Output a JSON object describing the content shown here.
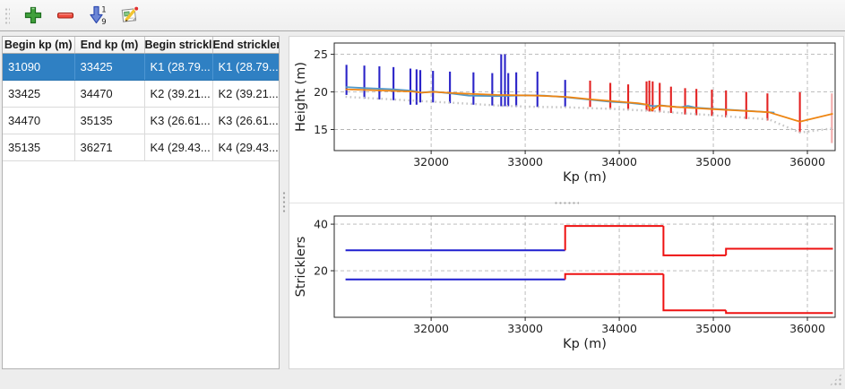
{
  "toolbar": {
    "buttons": [
      {
        "name": "add",
        "icon": "plus-icon"
      },
      {
        "name": "remove",
        "icon": "minus-icon"
      },
      {
        "name": "sort",
        "icon": "sort-numeric-icon",
        "digits": [
          "1",
          "9"
        ]
      },
      {
        "name": "edit",
        "icon": "edit-icon"
      }
    ]
  },
  "table": {
    "columns": [
      "Begin kp (m)",
      "End kp (m)",
      "Begin strickler",
      "End strickler"
    ],
    "rows": [
      [
        "31090",
        "33425",
        "K1 (28.79...",
        "K1 (28.79..."
      ],
      [
        "33425",
        "34470",
        "K2 (39.21...",
        "K2 (39.21..."
      ],
      [
        "34470",
        "35135",
        "K3 (26.61...",
        "K3 (26.61..."
      ],
      [
        "35135",
        "36271",
        "K4 (29.43...",
        "K4 (29.43..."
      ]
    ],
    "selected_row": 0,
    "selection_color": "#2f80c3"
  },
  "chart_data": [
    {
      "type": "line",
      "xlabel": "Kp (m)",
      "ylabel": "Height (m)",
      "xlim": [
        30970,
        36295
      ],
      "ylim": [
        12.2,
        26.5
      ],
      "xticks": [
        32000,
        33000,
        34000,
        35000,
        36000
      ],
      "yticks": [
        15,
        20,
        25
      ],
      "grid": true,
      "legend": "none",
      "cross_sections": [
        {
          "name": "selected-zone-sections",
          "color": "#2a23c8",
          "lines": [
            [
              31100,
              19.6,
              23.6
            ],
            [
              31290,
              19.1,
              23.5
            ],
            [
              31450,
              19.0,
              23.4
            ],
            [
              31600,
              18.9,
              23.3
            ],
            [
              31780,
              18.3,
              23.1
            ],
            [
              31845,
              18.3,
              23.0
            ],
            [
              31885,
              18.6,
              22.9
            ],
            [
              32020,
              18.6,
              22.8
            ],
            [
              32200,
              18.5,
              22.7
            ],
            [
              32450,
              18.3,
              22.6
            ],
            [
              32650,
              18.2,
              22.5
            ],
            [
              32745,
              18.1,
              25.0
            ],
            [
              32785,
              18.1,
              25.0
            ],
            [
              32820,
              18.1,
              22.5
            ],
            [
              32905,
              18.0,
              22.6
            ],
            [
              33130,
              18.0,
              22.7
            ],
            [
              33425,
              18.0,
              21.6
            ]
          ]
        },
        {
          "name": "other-zone-sections",
          "color": "#e32222",
          "lines": [
            [
              33690,
              18.0,
              21.5
            ],
            [
              33905,
              17.7,
              21.2
            ],
            [
              34095,
              17.6,
              21.0
            ],
            [
              34290,
              17.5,
              21.4
            ],
            [
              34320,
              17.4,
              21.5
            ],
            [
              34355,
              17.4,
              21.4
            ],
            [
              34430,
              17.3,
              21.2
            ],
            [
              34550,
              17.2,
              20.7
            ],
            [
              34700,
              17.0,
              20.5
            ],
            [
              34820,
              16.9,
              20.4
            ],
            [
              34985,
              16.8,
              20.3
            ],
            [
              35135,
              16.6,
              20.2
            ],
            [
              35350,
              16.4,
              20.0
            ],
            [
              35575,
              16.2,
              19.8
            ],
            [
              35920,
              14.6,
              19.95
            ]
          ]
        },
        {
          "name": "end-section-pale",
          "color": "#f2aaaa",
          "lines": [
            [
              36260,
              13.2,
              19.8
            ]
          ]
        }
      ],
      "series": [
        {
          "name": "bed-profile-dotted",
          "color": "#c6c6c6",
          "dash": "dotted",
          "width": 2.4,
          "points": [
            [
              31090,
              19.35
            ],
            [
              31450,
              19.1
            ],
            [
              31800,
              18.85
            ],
            [
              32020,
              18.7
            ],
            [
              32450,
              18.4
            ],
            [
              32760,
              18.15
            ],
            [
              33130,
              18.0
            ],
            [
              33440,
              17.95
            ],
            [
              33900,
              17.75
            ],
            [
              34300,
              17.5
            ],
            [
              34700,
              17.15
            ],
            [
              35000,
              16.9
            ],
            [
              35360,
              16.55
            ],
            [
              35590,
              16.35
            ],
            [
              35920,
              14.6
            ],
            [
              36271,
              15.15
            ]
          ]
        },
        {
          "name": "water-line-blue",
          "color": "#4f97c7",
          "dash": "solid",
          "width": 1.8,
          "points": [
            [
              31090,
              20.65
            ],
            [
              31300,
              20.5
            ],
            [
              31600,
              20.35
            ],
            [
              31800,
              20.15
            ],
            [
              31900,
              19.9
            ],
            [
              32020,
              20.05
            ],
            [
              32210,
              19.8
            ],
            [
              32400,
              19.5
            ],
            [
              32700,
              19.45
            ],
            [
              33000,
              19.55
            ],
            [
              33200,
              19.5
            ],
            [
              33425,
              19.3
            ],
            [
              33700,
              18.95
            ],
            [
              33900,
              18.7
            ],
            [
              34100,
              18.55
            ],
            [
              34290,
              18.3
            ],
            [
              34360,
              18.1
            ],
            [
              34450,
              18.2
            ],
            [
              34560,
              18.05
            ],
            [
              34650,
              17.95
            ],
            [
              34730,
              18.15
            ],
            [
              34820,
              17.9
            ],
            [
              35000,
              17.75
            ],
            [
              35200,
              17.6
            ],
            [
              35400,
              17.45
            ],
            [
              35650,
              17.25
            ]
          ]
        },
        {
          "name": "water-line-orange",
          "color": "#ee8512",
          "dash": "solid",
          "width": 1.8,
          "points": [
            [
              31090,
              20.35
            ],
            [
              31450,
              20.2
            ],
            [
              31800,
              20.05
            ],
            [
              31900,
              19.9
            ],
            [
              32020,
              20.0
            ],
            [
              32300,
              19.8
            ],
            [
              32700,
              19.6
            ],
            [
              33130,
              19.5
            ],
            [
              33425,
              19.35
            ],
            [
              33700,
              19.0
            ],
            [
              33950,
              18.75
            ],
            [
              34200,
              18.5
            ],
            [
              34300,
              18.3
            ],
            [
              34340,
              17.55
            ],
            [
              34420,
              18.2
            ],
            [
              34600,
              18.0
            ],
            [
              34800,
              17.85
            ],
            [
              35000,
              17.7
            ],
            [
              35300,
              17.5
            ],
            [
              35590,
              17.3
            ],
            [
              35920,
              16.05
            ],
            [
              36271,
              17.1
            ]
          ]
        }
      ]
    },
    {
      "type": "step",
      "xlabel": "Kp (m)",
      "ylabel": "Stricklers",
      "xlim": [
        30970,
        36295
      ],
      "ylim": [
        0,
        43.5
      ],
      "xticks": [
        32000,
        33000,
        34000,
        35000,
        36000
      ],
      "yticks": [
        20,
        40
      ],
      "grid": true,
      "step_series": [
        {
          "name": "minor-bed-strickler",
          "segments": [
            {
              "from": 31090,
              "to": 33425,
              "value": 28.79,
              "color": "#1f1fd0"
            },
            {
              "from": 33425,
              "to": 34470,
              "value": 39.21,
              "color": "#ee1111"
            },
            {
              "from": 34470,
              "to": 35135,
              "value": 26.61,
              "color": "#ee1111"
            },
            {
              "from": 35135,
              "to": 36271,
              "value": 29.43,
              "color": "#ee1111"
            }
          ]
        },
        {
          "name": "floodplain-strickler",
          "segments": [
            {
              "from": 31090,
              "to": 33425,
              "value": 16.3,
              "color": "#1f1fd0"
            },
            {
              "from": 33425,
              "to": 34470,
              "value": 18.6,
              "color": "#ee1111"
            },
            {
              "from": 34470,
              "to": 35135,
              "value": 3.0,
              "color": "#ee1111"
            },
            {
              "from": 35135,
              "to": 36271,
              "value": 1.8,
              "color": "#ee1111"
            }
          ]
        }
      ]
    }
  ]
}
